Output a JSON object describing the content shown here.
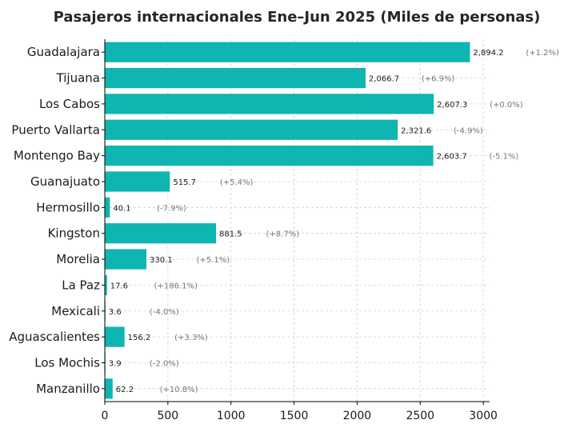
{
  "chart_data": {
    "type": "bar",
    "orientation": "horizontal",
    "title": "Pasajeros internacionales Ene–Jun 2025 (Miles de personas)",
    "xlabel": "",
    "ylabel": "",
    "categories": [
      "Guadalajara",
      "Tijuana",
      "Los Cabos",
      "Puerto Vallarta",
      "Montengo Bay",
      "Guanajuato",
      "Hermosillo",
      "Kingston",
      "Morelia",
      "La Paz",
      "Mexicali",
      "Aguascalientes",
      "Los Mochis",
      "Manzanillo"
    ],
    "values": [
      2894.2,
      2066.7,
      2607.3,
      2321.6,
      2603.7,
      515.7,
      40.1,
      881.5,
      330.1,
      17.6,
      3.6,
      156.2,
      3.9,
      62.2
    ],
    "value_labels": [
      "2,894.2",
      "2,066.7",
      "2,607.3",
      "2,321.6",
      "2,603.7",
      "515.7",
      "40.1",
      "881.5",
      "330.1",
      "17.6",
      "3.6",
      "156.2",
      "3.9",
      "62.2"
    ],
    "change_labels": [
      "(+1.2%)",
      "(+6.9%)",
      "(+0.0%)",
      "(-4.9%)",
      "(-5.1%)",
      "(+5.4%)",
      "(-7.9%)",
      "(+8.7%)",
      "(+5.1%)",
      "(+186.1%)",
      "(-4.0%)",
      "(+3.3%)",
      "(-2.0%)",
      "(+10.8%)"
    ],
    "xlim": [
      0,
      3050
    ],
    "xticks": [
      0,
      500,
      1000,
      1500,
      2000,
      2500,
      3000
    ],
    "xtick_labels": [
      "0",
      "500",
      "1000",
      "1500",
      "2000",
      "2500",
      "3000"
    ],
    "grid": true,
    "legend": "none",
    "colors": {
      "bar": "#0fb5b1",
      "grid": "#cfcfcf",
      "change_text": "#777777"
    }
  }
}
